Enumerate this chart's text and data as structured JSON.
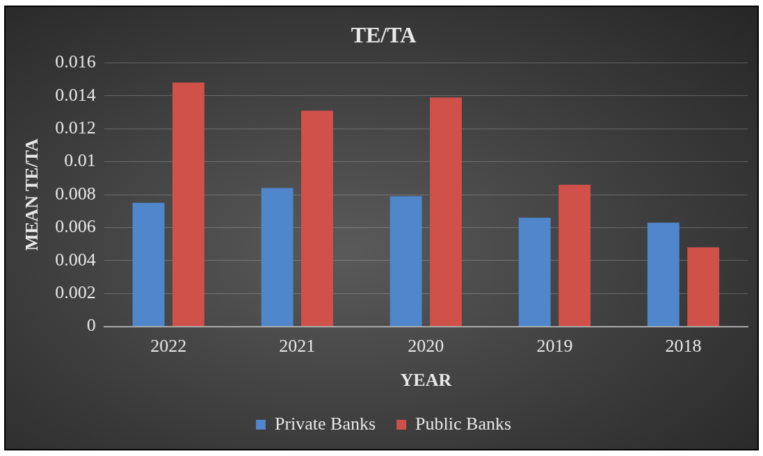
{
  "chart_data": {
    "type": "bar",
    "title": "TE/TA",
    "xlabel": "YEAR",
    "ylabel": "MEAN TE/TA",
    "categories": [
      "2022",
      "2021",
      "2020",
      "2019",
      "2018"
    ],
    "series": [
      {
        "name": "Private Banks",
        "color": "#4f86cc",
        "values": [
          0.0075,
          0.0084,
          0.0079,
          0.0066,
          0.0063
        ]
      },
      {
        "name": "Public Banks",
        "color": "#d0504a",
        "values": [
          0.0148,
          0.0131,
          0.0139,
          0.0086,
          0.0048
        ]
      }
    ],
    "ylim": [
      0,
      0.016
    ],
    "yticks": [
      0,
      0.002,
      0.004,
      0.006,
      0.008,
      0.01,
      0.012,
      0.014,
      0.016
    ],
    "grid": "y",
    "legend": "bottom"
  }
}
